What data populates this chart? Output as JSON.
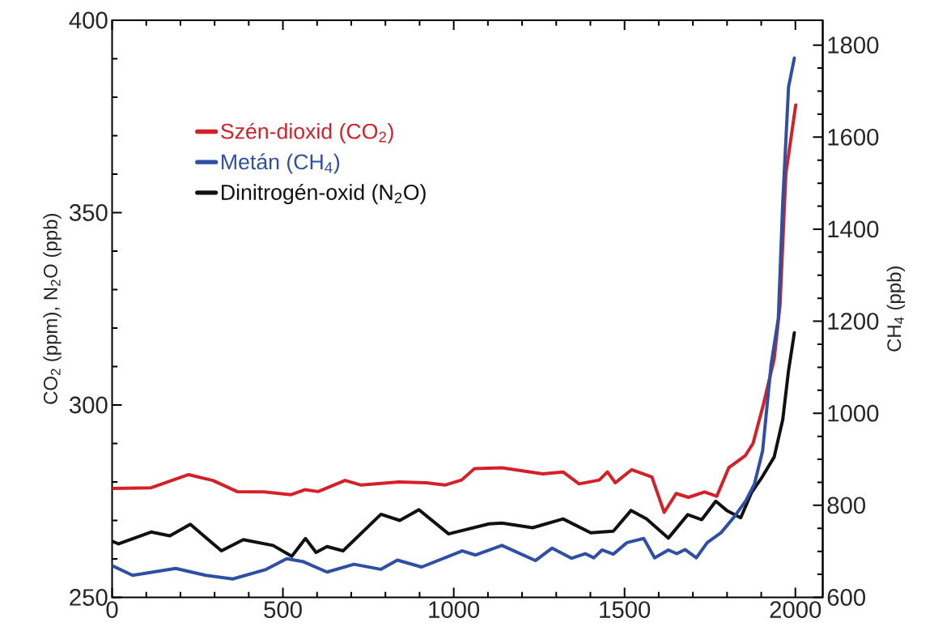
{
  "chart_data": {
    "type": "line",
    "xlabel": null,
    "ylabel": "CO$_{2}$ (ppm), N$_{2}$O (ppb)",
    "y2label": "CH$_{4}$ (ppb)",
    "xlim": [
      0,
      2080
    ],
    "ylim": [
      250,
      400
    ],
    "y2lim": [
      600,
      1854
    ],
    "xticks": [
      0,
      500,
      1000,
      1500,
      2000,
      {
        "value": 100,
        "label": null
      },
      {
        "value": 200,
        "label": null
      },
      {
        "value": 300,
        "label": null
      },
      {
        "value": 400,
        "label": null
      },
      {
        "value": 600,
        "label": null
      },
      {
        "value": 700,
        "label": null
      },
      {
        "value": 800,
        "label": null
      },
      {
        "value": 900,
        "label": null
      },
      {
        "value": 1100,
        "label": null
      },
      {
        "value": 1200,
        "label": null
      },
      {
        "value": 1300,
        "label": null
      },
      {
        "value": 1400,
        "label": null
      },
      {
        "value": 1600,
        "label": null
      },
      {
        "value": 1700,
        "label": null
      },
      {
        "value": 1800,
        "label": null
      },
      {
        "value": 1900,
        "label": null
      }
    ],
    "yticks": [
      250,
      300,
      350,
      400,
      {
        "value": 260,
        "label": null
      },
      {
        "value": 270,
        "label": null
      },
      {
        "value": 280,
        "label": null
      },
      {
        "value": 290,
        "label": null
      },
      {
        "value": 310,
        "label": null
      },
      {
        "value": 320,
        "label": null
      },
      {
        "value": 330,
        "label": null
      },
      {
        "value": 340,
        "label": null
      },
      {
        "value": 360,
        "label": null
      },
      {
        "value": 370,
        "label": null
      },
      {
        "value": 380,
        "label": null
      },
      {
        "value": 390,
        "label": null
      }
    ],
    "y2ticks": [
      600,
      800,
      1000,
      1200,
      1400,
      1600,
      1800,
      {
        "value": 650,
        "label": null
      },
      {
        "value": 700,
        "label": null
      },
      {
        "value": 750,
        "label": null
      },
      {
        "value": 850,
        "label": null
      },
      {
        "value": 900,
        "label": null
      },
      {
        "value": 950,
        "label": null
      },
      {
        "value": 1050,
        "label": null
      },
      {
        "value": 1100,
        "label": null
      },
      {
        "value": 1150,
        "label": null
      },
      {
        "value": 1250,
        "label": null
      },
      {
        "value": 1300,
        "label": null
      },
      {
        "value": 1350,
        "label": null
      },
      {
        "value": 1450,
        "label": null
      },
      {
        "value": 1500,
        "label": null
      },
      {
        "value": 1550,
        "label": null
      },
      {
        "value": 1650,
        "label": null
      },
      {
        "value": 1700,
        "label": null
      },
      {
        "value": 1750,
        "label": null
      }
    ],
    "legend": "top left",
    "series": [
      {
        "name": "Szén-dioxid (CO$_{2}$)",
        "color": "#d42027",
        "x": [
          0,
          114,
          224,
          295,
          366,
          445,
          524,
          564,
          603,
          682,
          729,
          840,
          919,
          974,
          1023,
          1061,
          1141,
          1260,
          1320,
          1367,
          1426,
          1450,
          1473,
          1521,
          1580,
          1616,
          1651,
          1687,
          1734,
          1770,
          1805,
          1853,
          1876,
          1906,
          1938,
          1955,
          1972,
          2001
        ],
        "values": [
          278.3,
          278.5,
          281.9,
          280.4,
          277.5,
          277.4,
          276.7,
          278,
          277.5,
          280.4,
          279.2,
          280,
          279.8,
          279.2,
          280.5,
          283.5,
          283.7,
          282.1,
          282.6,
          279.5,
          280.5,
          282.6,
          279.8,
          283.2,
          281.3,
          272.1,
          277,
          276,
          277.4,
          276.3,
          283.7,
          286.8,
          290,
          300,
          312,
          326,
          360,
          378
        ]
      },
      {
        "name": "Metán (CH$_{4}$)",
        "color": "#2e4fa3",
        "axis": "y2",
        "x": [
          0,
          60,
          186,
          274,
          353,
          448,
          511,
          558,
          629,
          708,
          787,
          835,
          906,
          1025,
          1064,
          1141,
          1239,
          1288,
          1345,
          1385,
          1410,
          1434,
          1467,
          1507,
          1556,
          1588,
          1628,
          1653,
          1677,
          1710,
          1742,
          1783,
          1823,
          1855,
          1880,
          1904,
          1929,
          1950,
          1963,
          1980,
          1997
        ],
        "values": [
          669,
          648,
          663,
          648,
          640,
          660,
          684,
          678,
          655,
          672,
          661,
          681,
          666,
          701,
          692,
          713,
          680,
          707,
          685,
          695,
          686,
          703,
          694,
          719,
          728,
          686,
          703,
          695,
          704,
          686,
          719,
          741,
          777,
          810,
          846,
          918,
          1106,
          1206,
          1458,
          1709,
          1772
        ]
      },
      {
        "name": "Dinitrogén-oxid (N$_{2}$O)",
        "color": "#111111",
        "x": [
          0,
          19,
          114,
          169,
          229,
          320,
          384,
          471,
          526,
          566,
          597,
          629,
          676,
          787,
          842,
          898,
          985,
          1103,
          1141,
          1231,
          1320,
          1401,
          1467,
          1519,
          1564,
          1628,
          1685,
          1726,
          1767,
          1799,
          1840,
          1872,
          1900,
          1938,
          1963,
          1980,
          1997
        ],
        "values": [
          264.6,
          263.9,
          267,
          266,
          269,
          262.1,
          265,
          263.5,
          260.7,
          265.3,
          261.7,
          263.2,
          262.1,
          271.6,
          270,
          272.8,
          266.5,
          269.1,
          269.3,
          268.1,
          270.4,
          266.8,
          267.2,
          272.6,
          270.4,
          265.4,
          271.5,
          270.2,
          275,
          272.6,
          270.7,
          277.3,
          280.9,
          286.5,
          296.2,
          309,
          318.8
        ]
      }
    ]
  }
}
